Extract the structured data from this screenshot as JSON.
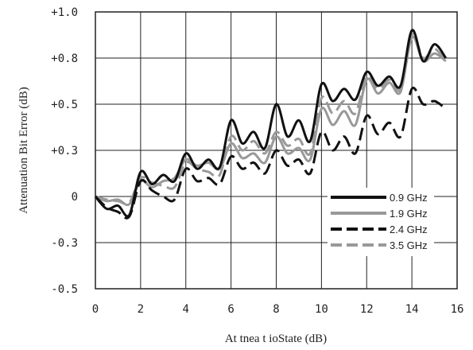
{
  "chart_data": {
    "type": "line",
    "xlabel": "At tnea t ioState (dB)",
    "ylabel": "Attenuation Bit Error (dB)",
    "xlim": [
      0,
      16
    ],
    "ylim": [
      -0.5,
      1.0
    ],
    "x_ticks": [
      0,
      2,
      4,
      6,
      8,
      10,
      12,
      14,
      16
    ],
    "x_tick_labels": [
      "0",
      "2",
      "4",
      "6",
      "8",
      "10",
      "12",
      "14",
      "16"
    ],
    "y_ticks": [
      1.0,
      0.8,
      0.5,
      0.3,
      0,
      -0.3,
      -0.5
    ],
    "y_tick_labels": [
      "+1.0",
      "+0.8",
      "+0.5",
      "+0.3",
      "0",
      "-0.3",
      "-0.5"
    ],
    "grid": true,
    "legend_position": "lower-right",
    "series": [
      {
        "name": "0.9 GHz",
        "color": "#111111",
        "dash": "solid",
        "x": [
          0,
          0.5,
          1.0,
          1.5,
          2.0,
          2.5,
          3.0,
          3.5,
          4.0,
          4.5,
          5.0,
          5.5,
          6.0,
          6.5,
          7.0,
          7.5,
          8.0,
          8.5,
          9.0,
          9.5,
          10.0,
          10.5,
          11.0,
          11.5,
          12.0,
          12.5,
          13.0,
          13.5,
          14.0,
          14.5,
          15.0,
          15.5
        ],
        "values": [
          0.0,
          -0.08,
          -0.06,
          -0.12,
          0.16,
          0.08,
          0.14,
          0.1,
          0.28,
          0.18,
          0.24,
          0.19,
          0.43,
          0.33,
          0.38,
          0.31,
          0.5,
          0.36,
          0.43,
          0.34,
          0.63,
          0.52,
          0.6,
          0.53,
          0.71,
          0.62,
          0.68,
          0.62,
          0.92,
          0.78,
          0.86,
          0.8
        ]
      },
      {
        "name": "1.9 GHz",
        "color": "#999999",
        "dash": "solid",
        "x": [
          0,
          0.5,
          1.0,
          1.5,
          2.0,
          2.5,
          3.0,
          3.5,
          4.0,
          4.5,
          5.0,
          5.5,
          6.0,
          6.5,
          7.0,
          7.5,
          8.0,
          8.5,
          9.0,
          9.5,
          10.0,
          10.5,
          11.0,
          11.5,
          12.0,
          12.5,
          13.0,
          13.5,
          14.0,
          14.5,
          15.0,
          15.5
        ],
        "values": [
          0.0,
          -0.03,
          -0.02,
          -0.05,
          0.1,
          0.06,
          0.1,
          0.12,
          0.24,
          0.2,
          0.22,
          0.18,
          0.33,
          0.25,
          0.28,
          0.22,
          0.36,
          0.28,
          0.31,
          0.24,
          0.48,
          0.41,
          0.47,
          0.41,
          0.66,
          0.57,
          0.64,
          0.58,
          0.89,
          0.78,
          0.82,
          0.78
        ]
      },
      {
        "name": "2.4 GHz",
        "color": "#111111",
        "dash": "dashed",
        "x": [
          0,
          0.5,
          1.0,
          1.5,
          2.0,
          2.5,
          3.0,
          3.5,
          4.0,
          4.5,
          5.0,
          5.5,
          6.0,
          6.5,
          7.0,
          7.5,
          8.0,
          8.5,
          9.0,
          9.5,
          10.0,
          10.5,
          11.0,
          11.5,
          12.0,
          12.5,
          13.0,
          13.5,
          14.0,
          14.5,
          15.0,
          15.5
        ],
        "values": [
          0.0,
          -0.07,
          -0.1,
          -0.13,
          0.1,
          0.04,
          0.0,
          -0.02,
          0.18,
          0.1,
          0.12,
          0.08,
          0.26,
          0.18,
          0.22,
          0.15,
          0.3,
          0.2,
          0.24,
          0.15,
          0.38,
          0.3,
          0.36,
          0.28,
          0.45,
          0.37,
          0.42,
          0.36,
          0.6,
          0.5,
          0.52,
          0.48
        ]
      },
      {
        "name": "3.5 GHz",
        "color": "#999999",
        "dash": "dashed",
        "x": [
          0,
          0.5,
          1.0,
          1.5,
          2.0,
          2.5,
          3.0,
          3.5,
          4.0,
          4.5,
          5.0,
          5.5,
          6.0,
          6.5,
          7.0,
          7.5,
          8.0,
          8.5,
          9.0,
          9.5,
          10.0,
          10.5,
          11.0,
          11.5,
          12.0,
          12.5,
          13.0,
          13.5,
          14.0,
          14.5,
          15.0,
          15.5
        ],
        "values": [
          0.0,
          -0.02,
          -0.03,
          -0.04,
          0.12,
          0.09,
          0.07,
          0.06,
          0.22,
          0.18,
          0.16,
          0.14,
          0.36,
          0.3,
          0.34,
          0.28,
          0.38,
          0.32,
          0.35,
          0.28,
          0.54,
          0.46,
          0.52,
          0.46,
          0.68,
          0.6,
          0.66,
          0.6,
          0.9,
          0.8,
          0.84,
          0.78
        ]
      }
    ]
  }
}
